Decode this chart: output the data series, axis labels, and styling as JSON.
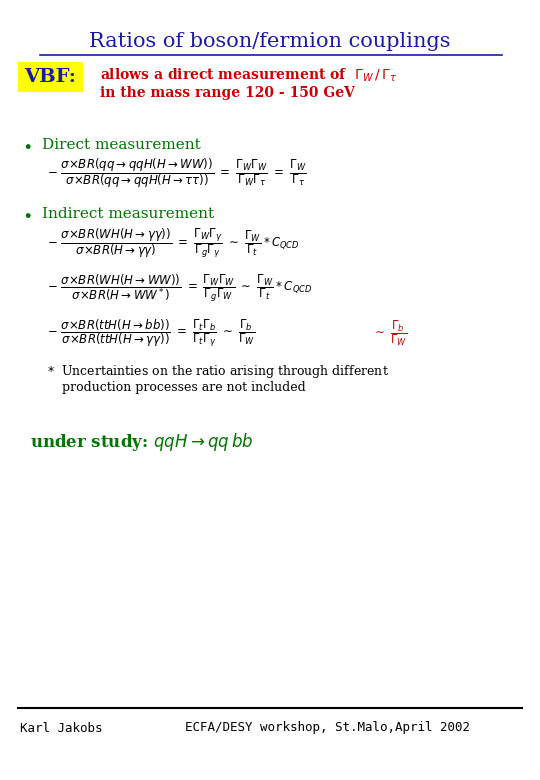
{
  "title": "Ratios of boson/fermion couplings",
  "title_color": "#1a1aaa",
  "title_fontsize": 15,
  "vbf_label": "VBF:",
  "vbf_bg": "#ffff00",
  "vbf_color": "#1a1aaa",
  "red_color": "#cc0000",
  "black_color": "#000000",
  "green_color": "#007700",
  "footer_left": "Karl Jakobs",
  "footer_right": "ECFA/DESY workshop, St.Malo,April 2002",
  "footer_fontsize": 9,
  "bg_color": "#ffffff"
}
